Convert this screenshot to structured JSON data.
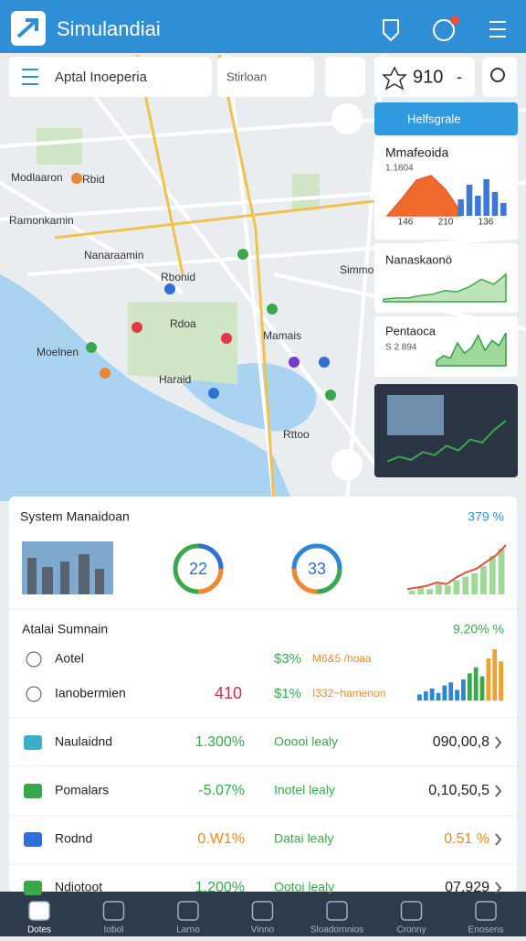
{
  "header": {
    "title": "Simulandiai"
  },
  "search": {
    "query": "Aptal Inoeperia",
    "filter": "Stirloan",
    "score": "910",
    "score_suffix": "-"
  },
  "map": {
    "labels": [
      "Modlaaron",
      "Rbid",
      "Ramonkamin",
      "Nanaraamin",
      "Rbonid",
      "Rdoa",
      "Simmo",
      "Mamais",
      "Moelnen",
      "Haraid",
      "Rttoo"
    ]
  },
  "side_panel": {
    "title": "Helfsgrale",
    "cards": [
      {
        "title": "Mmafeoida",
        "subtitle": "1.1804",
        "axis": [
          "146",
          "210",
          "136"
        ],
        "area": [
          0,
          22,
          46,
          52,
          34,
          6
        ],
        "bars": [
          18,
          34,
          22,
          40,
          26,
          14
        ]
      },
      {
        "title": "Nanaskaonö",
        "values": [
          2,
          3,
          3,
          5,
          6,
          9,
          8,
          12,
          18,
          14,
          22
        ]
      },
      {
        "title": "Pentaoca",
        "subtitle": "S 2 894",
        "values": [
          4,
          8,
          6,
          18,
          10,
          14,
          24,
          12,
          20,
          16,
          26
        ]
      },
      {
        "values": [
          2,
          5,
          3,
          8,
          6,
          12,
          9,
          16,
          14,
          22,
          28
        ]
      }
    ]
  },
  "summary": {
    "title": "System Manaidoan",
    "value": "379 %",
    "gauges": [
      "22",
      "33"
    ],
    "trend": [
      2,
      3,
      4,
      6,
      5,
      9,
      12,
      14,
      18,
      22,
      28
    ],
    "bars": [
      2,
      4,
      3,
      6,
      5,
      8,
      10,
      12,
      16,
      22,
      26
    ]
  },
  "stats": {
    "title": "Atalai Sumnain",
    "value": "9.20% %",
    "rows": [
      {
        "label": "Aotel",
        "mid": "$3%",
        "note": "M6&5 /hoaa"
      },
      {
        "label": "Ianobermien",
        "left": "410",
        "mid": "$1%",
        "note": "I332~hamenon"
      }
    ],
    "bars": [
      4,
      6,
      8,
      5,
      10,
      12,
      7,
      14,
      18,
      22,
      16,
      28,
      34,
      26
    ],
    "colors": [
      "#2f86d6",
      "#2f86d6",
      "#2f86d6",
      "#2f86d6",
      "#2f86d6",
      "#2f86d6",
      "#2f86d6",
      "#2f86d6",
      "#3aa84a",
      "#3aa84a",
      "#3aa84a",
      "#f0a030",
      "#f0a030",
      "#f0a030"
    ]
  },
  "list": [
    {
      "label": "Naulaidnd",
      "change": "1.300%",
      "status": "Ooooi lealy",
      "amount": "090,00,8",
      "color": "#3aa84a"
    },
    {
      "label": "Pomalars",
      "change": "-5.07%",
      "status": "Inotel lealy",
      "amount": "0,10,50,5",
      "color": "#3aa84a"
    },
    {
      "label": "Rodnd",
      "change": "0.W1%",
      "status": "Datai lealy",
      "amount": "0.51 %",
      "color": "#f08a10"
    },
    {
      "label": "Ndiotoot",
      "change": "1.200%",
      "status": "Ootoi lealy",
      "amount": "07,929",
      "color": "#3aa84a"
    }
  ],
  "nav": [
    "Dotes",
    "Iobol",
    "Larno",
    "Vinno",
    "Sloadornnios",
    "Cronny",
    "Enosens"
  ]
}
